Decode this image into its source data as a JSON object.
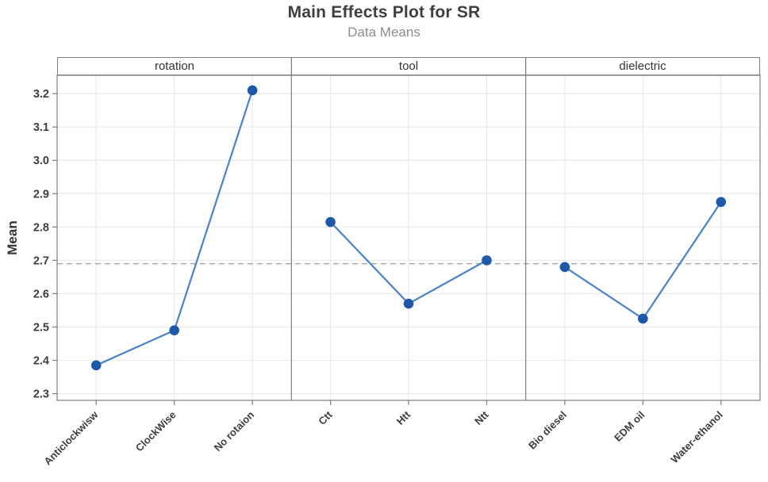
{
  "title": "Main Effects Plot for SR",
  "subtitle": "Data Means",
  "chart_data": {
    "type": "line",
    "title": "Main Effects Plot for SR",
    "subtitle": "Data Means",
    "ylabel": "Mean",
    "ylim": [
      2.28,
      3.255
    ],
    "yticks": [
      2.3,
      2.4,
      2.5,
      2.6,
      2.7,
      2.8,
      2.9,
      3.0,
      3.1,
      3.2
    ],
    "reference_line": 2.69,
    "grid": true,
    "legend": "none",
    "panels": [
      {
        "label": "rotation",
        "categories": [
          "Anticlockwisw",
          "ClockWise",
          "No rotaion"
        ],
        "values": [
          2.385,
          2.49,
          3.21
        ]
      },
      {
        "label": "tool",
        "categories": [
          "Ctt",
          "Htt",
          "Ntt"
        ],
        "values": [
          2.815,
          2.57,
          2.7
        ]
      },
      {
        "label": "dielectric",
        "categories": [
          "Bio diesel",
          "EDM oil",
          "Water-ethanol"
        ],
        "values": [
          2.68,
          2.525,
          2.875
        ]
      }
    ],
    "colors": {
      "marker": "#1d59a8",
      "line": "#4d82c4",
      "reference": "#a8a8a8",
      "grid": "#e9e9e9",
      "border": "#7f7f7f",
      "tick_text": "#3d3d3d"
    }
  }
}
